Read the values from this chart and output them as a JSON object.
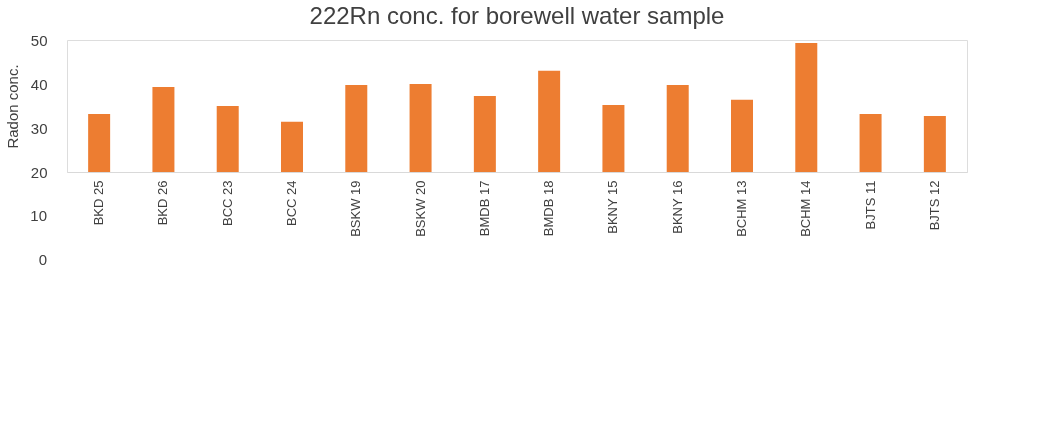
{
  "chart_data": {
    "type": "bar",
    "title": "222Rn conc. for borewell water sample",
    "ylabel": "Radon conc.",
    "categories": [
      "BKD 25",
      "BKD 26",
      "BCC 23",
      "BCC 24",
      "BSKW 19",
      "BSKW 20",
      "BMDB 17",
      "BMDB 18",
      "BKNY 15",
      "BKNY 16",
      "BCHM 13",
      "BCHM 14",
      "BJTS 11",
      "BJTS  12"
    ],
    "series": [
      {
        "color": "#ed7d31",
        "values": [
          33.2,
          39.3,
          35.0,
          31.4,
          39.8,
          40.0,
          37.3,
          43.0,
          35.2,
          39.8,
          36.4,
          49.3,
          33.2,
          32.7
        ]
      }
    ],
    "ylim": [
      20,
      50
    ],
    "yticks": [
      20,
      30,
      40,
      50
    ],
    "annotations": [
      "10",
      "0"
    ],
    "grid": false
  }
}
